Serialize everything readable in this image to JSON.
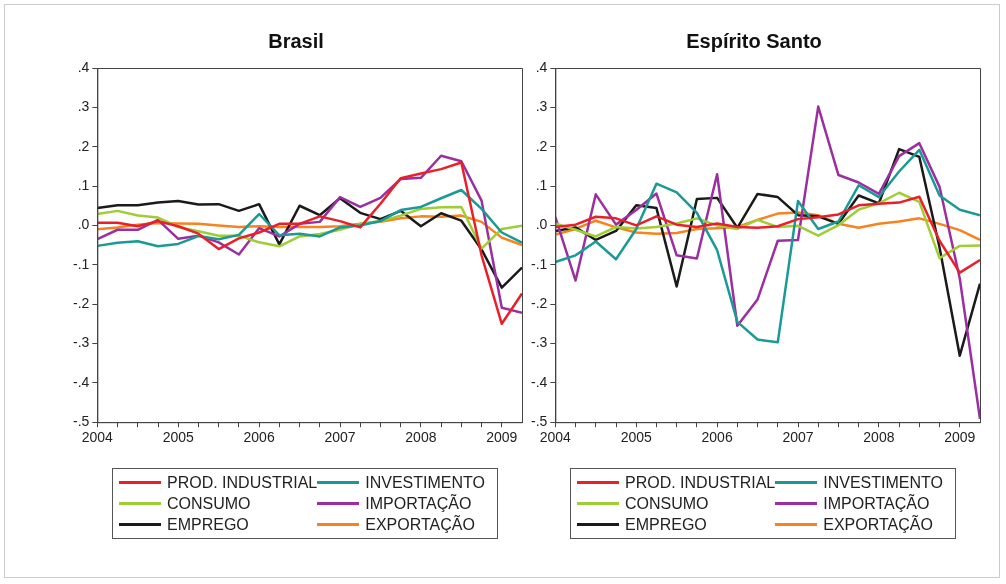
{
  "chart_data": [
    {
      "type": "line",
      "title": "Brasil",
      "legend": "bottom",
      "marker": "none",
      "grid": false,
      "x": [
        2004,
        2004.25,
        2004.5,
        2004.75,
        2005,
        2005.25,
        2005.5,
        2005.75,
        2006,
        2006.25,
        2006.5,
        2006.75,
        2007,
        2007.25,
        2007.5,
        2007.75,
        2008,
        2008.25,
        2008.5,
        2008.75,
        2009,
        2009.25
      ],
      "xlim": [
        2004,
        2009.25
      ],
      "xticks": [
        2004,
        {
          "value": 2004.25,
          "label": null
        },
        {
          "value": 2004.5,
          "label": null
        },
        {
          "value": 2004.75,
          "label": null
        },
        2005,
        {
          "value": 2005.25,
          "label": null
        },
        {
          "value": 2005.5,
          "label": null
        },
        {
          "value": 2005.75,
          "label": null
        },
        2006,
        {
          "value": 2006.25,
          "label": null
        },
        {
          "value": 2006.5,
          "label": null
        },
        {
          "value": 2006.75,
          "label": null
        },
        2007,
        {
          "value": 2007.25,
          "label": null
        },
        {
          "value": 2007.5,
          "label": null
        },
        {
          "value": 2007.75,
          "label": null
        },
        2008,
        {
          "value": 2008.25,
          "label": null
        },
        {
          "value": 2008.5,
          "label": null
        },
        {
          "value": 2008.75,
          "label": null
        },
        2009
      ],
      "ylim": [
        -0.5,
        0.4
      ],
      "yticks": [
        {
          "value": -0.5,
          "label": "-.5"
        },
        {
          "value": -0.4,
          "label": "-.4"
        },
        {
          "value": -0.3,
          "label": "-.3"
        },
        {
          "value": -0.2,
          "label": "-.2"
        },
        {
          "value": -0.1,
          "label": "-.1"
        },
        {
          "value": 0,
          "label": ".0"
        },
        {
          "value": 0.1,
          "label": ".1"
        },
        {
          "value": 0.2,
          "label": ".2"
        },
        {
          "value": 0.3,
          "label": ".3"
        },
        {
          "value": 0.4,
          "label": ".4"
        }
      ],
      "series": [
        {
          "name": "PROD. INDUSTRIAL",
          "color": "#e8202a",
          "values": [
            0.007,
            0.007,
            -0.002,
            0.011,
            -0.002,
            -0.021,
            -0.06,
            -0.033,
            -0.018,
            0.004,
            0.004,
            0.023,
            0.011,
            -0.005,
            0.055,
            0.12,
            0.132,
            0.143,
            0.16,
            -0.076,
            -0.25,
            -0.173
          ]
        },
        {
          "name": "INVESTIMENTO",
          "color": "#1a9a96",
          "values": [
            -0.052,
            -0.044,
            -0.04,
            -0.053,
            -0.047,
            -0.027,
            -0.035,
            -0.024,
            0.029,
            -0.025,
            -0.021,
            -0.028,
            -0.005,
            0,
            0.011,
            0.039,
            0.047,
            0.069,
            0.09,
            0.042,
            -0.018,
            -0.044
          ]
        },
        {
          "name": "CONSUMO",
          "color": "#9fcd36",
          "values": [
            0.029,
            0.037,
            0.025,
            0.02,
            -0.004,
            -0.015,
            -0.026,
            -0.026,
            -0.043,
            -0.053,
            -0.028,
            -0.022,
            -0.011,
            0.004,
            0.011,
            0.025,
            0.042,
            0.046,
            0.047,
            -0.059,
            -0.009,
            -0.001
          ]
        },
        {
          "name": "IMPORTAÇÃO",
          "color": "#9b2fa0",
          "values": [
            -0.035,
            -0.011,
            -0.011,
            0.014,
            -0.034,
            -0.026,
            -0.043,
            -0.074,
            -0.007,
            -0.028,
            0.004,
            0.009,
            0.072,
            0.047,
            0.07,
            0.118,
            0.121,
            0.177,
            0.163,
            0.063,
            -0.209,
            -0.222
          ]
        },
        {
          "name": "EMPREGO",
          "color": "#1a1a1a",
          "values": [
            0.044,
            0.051,
            0.051,
            0.058,
            0.062,
            0.053,
            0.054,
            0.037,
            0.054,
            -0.048,
            0.05,
            0.026,
            0.069,
            0.032,
            0.016,
            0.037,
            -0.002,
            0.031,
            0.012,
            -0.061,
            -0.158,
            -0.107
          ]
        },
        {
          "name": "EXPORTAÇÃO",
          "color": "#f7821e",
          "values": [
            -0.01,
            -0.005,
            0.002,
            0.006,
            0.005,
            0.004,
            0,
            -0.004,
            -0.002,
            -0.004,
            -0.004,
            -0.004,
            -0.002,
            0.004,
            0.009,
            0.018,
            0.023,
            0.022,
            0.025,
            0.009,
            -0.031,
            -0.05
          ]
        }
      ]
    },
    {
      "type": "line",
      "title": "Espírito Santo",
      "legend": "bottom",
      "marker": "none",
      "grid": false,
      "x": [
        2004,
        2004.25,
        2004.5,
        2004.75,
        2005,
        2005.25,
        2005.5,
        2005.75,
        2006,
        2006.25,
        2006.5,
        2006.75,
        2007,
        2007.25,
        2007.5,
        2007.75,
        2008,
        2008.25,
        2008.5,
        2008.75,
        2009,
        2009.25
      ],
      "xlim": [
        2004,
        2009.25
      ],
      "xticks": [
        2004,
        {
          "value": 2004.25,
          "label": null
        },
        {
          "value": 2004.5,
          "label": null
        },
        {
          "value": 2004.75,
          "label": null
        },
        2005,
        {
          "value": 2005.25,
          "label": null
        },
        {
          "value": 2005.5,
          "label": null
        },
        {
          "value": 2005.75,
          "label": null
        },
        2006,
        {
          "value": 2006.25,
          "label": null
        },
        {
          "value": 2006.5,
          "label": null
        },
        {
          "value": 2006.75,
          "label": null
        },
        2007,
        {
          "value": 2007.25,
          "label": null
        },
        {
          "value": 2007.5,
          "label": null
        },
        {
          "value": 2007.75,
          "label": null
        },
        2008,
        {
          "value": 2008.25,
          "label": null
        },
        {
          "value": 2008.5,
          "label": null
        },
        {
          "value": 2008.75,
          "label": null
        },
        2009
      ],
      "ylim": [
        -0.5,
        0.4
      ],
      "yticks": [
        {
          "value": -0.5,
          "label": "-.5"
        },
        {
          "value": -0.4,
          "label": "-.4"
        },
        {
          "value": -0.3,
          "label": "-.3"
        },
        {
          "value": -0.2,
          "label": "-.2"
        },
        {
          "value": -0.1,
          "label": "-.1"
        },
        {
          "value": 0,
          "label": ".0"
        },
        {
          "value": 0.1,
          "label": ".1"
        },
        {
          "value": 0.2,
          "label": ".2"
        },
        {
          "value": 0.3,
          "label": ".3"
        },
        {
          "value": 0.4,
          "label": ".4"
        }
      ],
      "series": [
        {
          "name": "PROD. INDUSTRIAL",
          "color": "#e8202a",
          "values": [
            -0.004,
            0.002,
            0.022,
            0.018,
            0,
            0.023,
            0.002,
            -0.004,
            0.005,
            -0.004,
            -0.006,
            -0.002,
            0.016,
            0.021,
            0.028,
            0.051,
            0.055,
            0.058,
            0.073,
            -0.039,
            -0.12,
            -0.088
          ]
        },
        {
          "name": "INVESTIMENTO",
          "color": "#1a9a96",
          "values": [
            -0.093,
            -0.076,
            -0.041,
            -0.086,
            -0.009,
            0.106,
            0.084,
            0.032,
            -0.063,
            -0.245,
            -0.29,
            -0.297,
            0.062,
            -0.009,
            0.01,
            0.102,
            0.072,
            0.137,
            0.192,
            0.076,
            0.04,
            0.026
          ]
        },
        {
          "name": "CONSUMO",
          "color": "#9fcd36",
          "values": [
            0.005,
            -0.011,
            -0.028,
            -0.004,
            -0.008,
            -0.004,
            0.005,
            0.018,
            0,
            -0.009,
            0.014,
            -0.004,
            -0.001,
            -0.026,
            0.001,
            0.04,
            0.056,
            0.083,
            0.06,
            -0.083,
            -0.052,
            -0.051
          ]
        },
        {
          "name": "IMPORTAÇÃO",
          "color": "#9b2fa0",
          "values": [
            0.021,
            -0.14,
            0.079,
            0.002,
            0.039,
            0.081,
            -0.076,
            -0.084,
            0.13,
            -0.255,
            -0.188,
            -0.039,
            -0.037,
            0.302,
            0.128,
            0.109,
            0.08,
            0.176,
            0.209,
            0.098,
            -0.135,
            -0.492
          ]
        },
        {
          "name": "EMPREGO",
          "color": "#1a1a1a",
          "values": [
            -0.014,
            -0.005,
            -0.037,
            -0.014,
            0.051,
            0.044,
            -0.155,
            0.067,
            0.07,
            -0.006,
            0.08,
            0.072,
            0.026,
            0.023,
            0.004,
            0.076,
            0.056,
            0.194,
            0.174,
            -0.056,
            -0.331,
            -0.148
          ]
        },
        {
          "name": "EXPORTAÇÃO",
          "color": "#f7821e",
          "values": [
            -0.023,
            -0.009,
            0.012,
            -0.005,
            -0.018,
            -0.021,
            -0.019,
            -0.009,
            -0.007,
            -0.004,
            0.014,
            0.03,
            0.033,
            0.026,
            0.004,
            -0.006,
            0.004,
            0.01,
            0.018,
            0.004,
            -0.012,
            -0.037
          ]
        }
      ]
    }
  ]
}
